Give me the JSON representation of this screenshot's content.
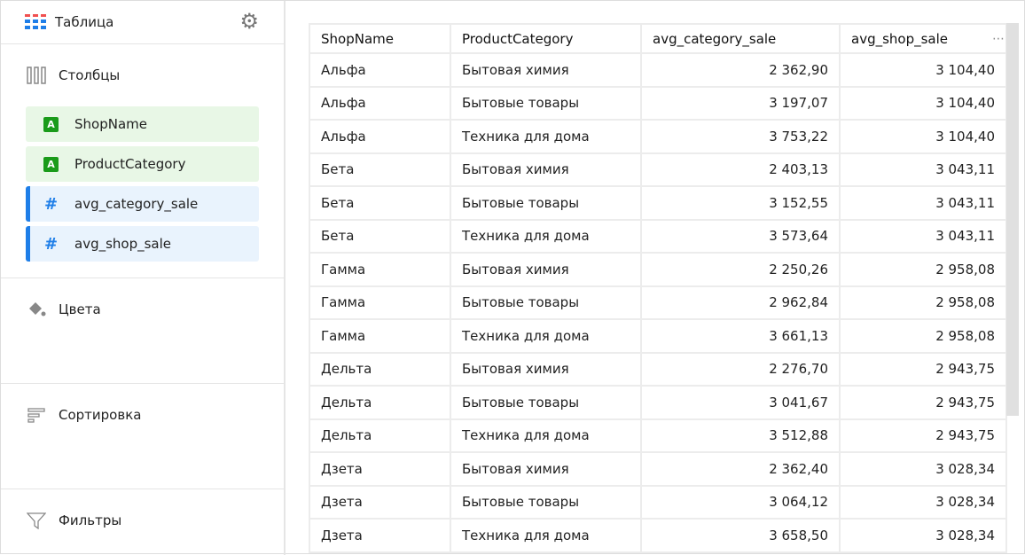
{
  "sidebar": {
    "title": "Таблица",
    "columns_label": "Столбцы",
    "fields": [
      {
        "name": "ShopName",
        "type": "dimension",
        "badge": "A"
      },
      {
        "name": "ProductCategory",
        "type": "dimension",
        "badge": "A"
      },
      {
        "name": "avg_category_sale",
        "type": "measure",
        "badge": "#"
      },
      {
        "name": "avg_shop_sale",
        "type": "measure",
        "badge": "#"
      }
    ],
    "colors_label": "Цвета",
    "sort_label": "Сортировка",
    "filters_label": "Фильтры"
  },
  "table": {
    "headers": [
      "ShopName",
      "ProductCategory",
      "avg_category_sale",
      "avg_shop_sale"
    ],
    "more_icon": "⋯",
    "rows": [
      [
        "Альфа",
        "Бытовая химия",
        "2 362,90",
        "3 104,40"
      ],
      [
        "Альфа",
        "Бытовые товары",
        "3 197,07",
        "3 104,40"
      ],
      [
        "Альфа",
        "Техника для дома",
        "3 753,22",
        "3 104,40"
      ],
      [
        "Бета",
        "Бытовая химия",
        "2 403,13",
        "3 043,11"
      ],
      [
        "Бета",
        "Бытовые товары",
        "3 152,55",
        "3 043,11"
      ],
      [
        "Бета",
        "Техника для дома",
        "3 573,64",
        "3 043,11"
      ],
      [
        "Гамма",
        "Бытовая химия",
        "2 250,26",
        "2 958,08"
      ],
      [
        "Гамма",
        "Бытовые товары",
        "2 962,84",
        "2 958,08"
      ],
      [
        "Гамма",
        "Техника для дома",
        "3 661,13",
        "2 958,08"
      ],
      [
        "Дельта",
        "Бытовая химия",
        "2 276,70",
        "2 943,75"
      ],
      [
        "Дельта",
        "Бытовые товары",
        "3 041,67",
        "2 943,75"
      ],
      [
        "Дельта",
        "Техника для дома",
        "3 512,88",
        "2 943,75"
      ],
      [
        "Дзета",
        "Бытовая химия",
        "2 362,40",
        "3 028,34"
      ],
      [
        "Дзета",
        "Бытовые товары",
        "3 064,12",
        "3 028,34"
      ],
      [
        "Дзета",
        "Техника для дома",
        "3 658,50",
        "3 028,34"
      ]
    ]
  }
}
